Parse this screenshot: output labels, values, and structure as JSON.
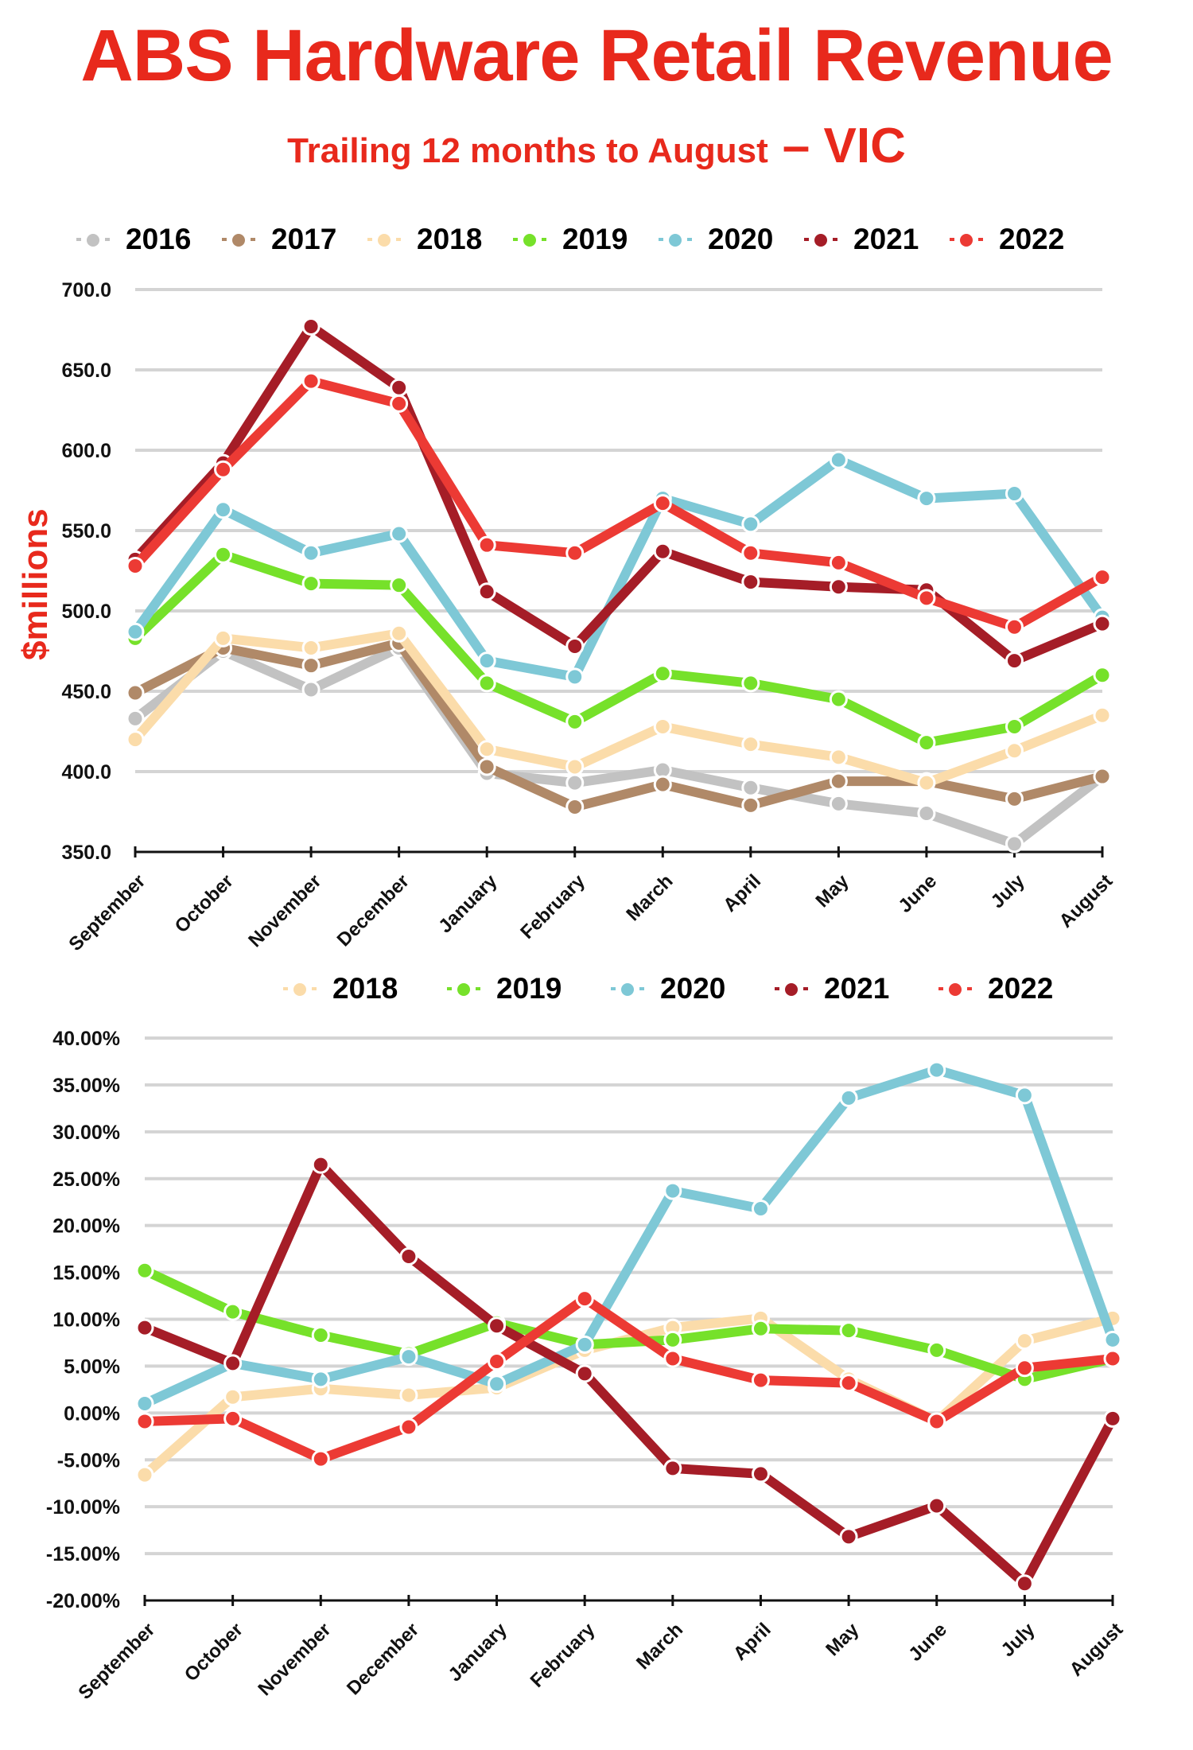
{
  "header": {
    "title": "ABS Hardware Retail Revenue",
    "subtitle": "Trailing 12 months to August",
    "region": "– VIC"
  },
  "colors": {
    "title": "#e8291c",
    "2016": "#c2c2c2",
    "2017": "#b08968",
    "2018": "#fbdcaa",
    "2019": "#76e12a",
    "2020": "#7ec8d6",
    "2021": "#a51d27",
    "2022": "#ec3a34"
  },
  "chart_data": [
    {
      "type": "line",
      "ylabel": "$millions",
      "ylim": [
        350,
        700
      ],
      "yticks": [
        "350.0",
        "400.0",
        "450.0",
        "500.0",
        "550.0",
        "600.0",
        "650.0",
        "700.0"
      ],
      "grid": true,
      "legend": "top",
      "categories": [
        "September",
        "October",
        "November",
        "December",
        "January",
        "February",
        "March",
        "April",
        "May",
        "June",
        "July",
        "August"
      ],
      "series": [
        {
          "name": "2016",
          "values": [
            433,
            475,
            451,
            477,
            399,
            393,
            401,
            390,
            380,
            374,
            355,
            397
          ]
        },
        {
          "name": "2017",
          "values": [
            449,
            477,
            466,
            480,
            403,
            378,
            392,
            379,
            394,
            394,
            383,
            397
          ]
        },
        {
          "name": "2018",
          "values": [
            420,
            483,
            477,
            486,
            414,
            403,
            428,
            417,
            409,
            393,
            413,
            435
          ]
        },
        {
          "name": "2019",
          "values": [
            483,
            535,
            517,
            516,
            455,
            431,
            461,
            455,
            445,
            418,
            428,
            460
          ]
        },
        {
          "name": "2020",
          "values": [
            487,
            563,
            536,
            548,
            469,
            459,
            570,
            554,
            594,
            570,
            573,
            496
          ]
        },
        {
          "name": "2021",
          "values": [
            532,
            592,
            677,
            639,
            512,
            478,
            537,
            518,
            515,
            513,
            469,
            492
          ]
        },
        {
          "name": "2022",
          "values": [
            528,
            588,
            643,
            629,
            541,
            536,
            567,
            536,
            530,
            508,
            490,
            521
          ]
        }
      ]
    },
    {
      "type": "line",
      "ylim": [
        -20,
        40
      ],
      "yticks": [
        "-20.00%",
        "-15.00%",
        "-10.00%",
        "-5.00%",
        "0.00%",
        "5.00%",
        "10.00%",
        "15.00%",
        "20.00%",
        "25.00%",
        "30.00%",
        "35.00%",
        "40.00%"
      ],
      "grid": true,
      "legend": "top",
      "categories": [
        "September",
        "October",
        "November",
        "December",
        "January",
        "February",
        "March",
        "April",
        "May",
        "June",
        "July",
        "August"
      ],
      "series": [
        {
          "name": "2018",
          "values": [
            -6.6,
            1.7,
            2.6,
            1.9,
            2.7,
            6.7,
            9.1,
            10.1,
            3.6,
            -0.9,
            7.7,
            10.1
          ]
        },
        {
          "name": "2019",
          "values": [
            15.2,
            10.8,
            8.3,
            6.3,
            9.6,
            7.3,
            7.8,
            9.0,
            8.8,
            6.7,
            3.6,
            5.8
          ]
        },
        {
          "name": "2020",
          "values": [
            1.0,
            5.3,
            3.6,
            6.0,
            3.1,
            7.3,
            23.7,
            21.8,
            33.6,
            36.6,
            33.9,
            7.8
          ]
        },
        {
          "name": "2021",
          "values": [
            9.1,
            5.3,
            26.5,
            16.7,
            9.3,
            4.2,
            -5.9,
            -6.5,
            -13.2,
            -9.9,
            -18.2,
            -0.6
          ]
        },
        {
          "name": "2022",
          "values": [
            -0.9,
            -0.6,
            -4.9,
            -1.5,
            5.5,
            12.2,
            5.8,
            3.5,
            3.2,
            -0.9,
            4.8,
            5.8
          ]
        }
      ]
    }
  ]
}
